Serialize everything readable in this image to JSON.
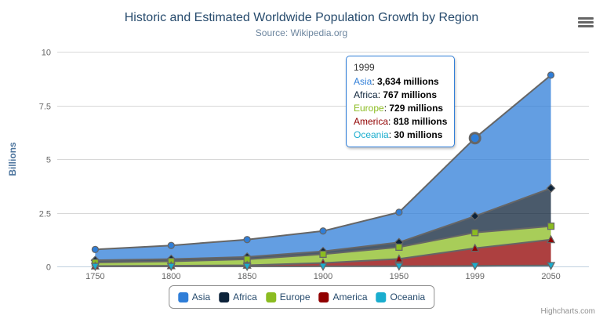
{
  "chart": {
    "title": "Historic and Estimated Worldwide Population Growth by Region",
    "subtitle": "Source: Wikipedia.org",
    "credits": "Highcharts.com"
  },
  "chart_data": {
    "type": "area",
    "stacking": "normal",
    "title": "Historic and Estimated Worldwide Population Growth by Region",
    "subtitle": "Source: Wikipedia.org",
    "xlabel": "",
    "ylabel": "Billions",
    "unit": "millions",
    "categories": [
      "1750",
      "1800",
      "1850",
      "1900",
      "1950",
      "1999",
      "2050"
    ],
    "series": [
      {
        "name": "Asia",
        "color": "#2f7ed8",
        "marker": "circle",
        "values": [
          502,
          635,
          809,
          947,
          1402,
          3634,
          5268
        ]
      },
      {
        "name": "Africa",
        "color": "#0d233a",
        "marker": "diamond",
        "values": [
          106,
          107,
          111,
          133,
          221,
          767,
          1766
        ]
      },
      {
        "name": "Europe",
        "color": "#8bbc21",
        "marker": "square",
        "values": [
          163,
          203,
          276,
          408,
          547,
          729,
          628
        ]
      },
      {
        "name": "America",
        "color": "#910000",
        "marker": "triangle",
        "values": [
          18,
          31,
          54,
          156,
          339,
          818,
          1201
        ]
      },
      {
        "name": "Oceania",
        "color": "#1aadce",
        "marker": "triangle-down",
        "values": [
          2,
          2,
          2,
          6,
          13,
          30,
          46
        ]
      }
    ],
    "ylim": [
      0,
      10
    ],
    "yticks": [
      "0",
      "2.5",
      "5",
      "7.5",
      "10"
    ],
    "grid": true,
    "legend_position": "bottom",
    "hover_point": {
      "series": "Asia",
      "category": "1999"
    }
  },
  "tooltip": {
    "header": "1999",
    "rows": [
      {
        "name": "Asia",
        "value": "3,634 millions"
      },
      {
        "name": "Africa",
        "value": "767 millions"
      },
      {
        "name": "Europe",
        "value": "729 millions"
      },
      {
        "name": "America",
        "value": "818 millions"
      },
      {
        "name": "Oceania",
        "value": "30 millions"
      }
    ]
  },
  "legend": {
    "items": [
      "Asia",
      "Africa",
      "Europe",
      "America",
      "Oceania"
    ]
  },
  "colors": {
    "title": "#274b6d",
    "subtitle": "#6d869f",
    "yaxis_title": "#4d759e",
    "axis_label": "#666666",
    "grid_line": "#d8d8d8",
    "axis_line": "#c0d0e0",
    "area_line": "#666666",
    "tooltip_border": "#2f7ed8",
    "legend_border": "#909090",
    "legend_text": "#274b6d",
    "credits": "#909090",
    "menu_icon": "#666666"
  }
}
